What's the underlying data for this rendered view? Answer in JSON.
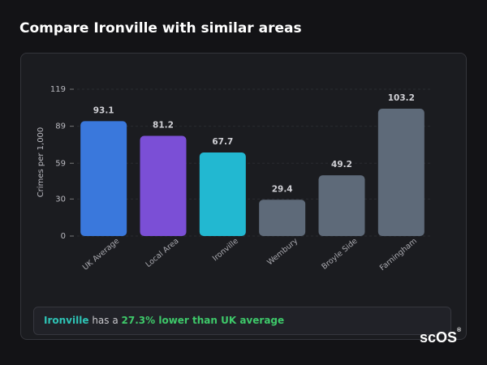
{
  "chart_data": {
    "type": "bar",
    "title": "Compare Ironville with similar areas",
    "y_label": "Crimes per 1,000",
    "categories": [
      "UK Average",
      "Local Area",
      "Ironville",
      "Wembury",
      "Broyle Side",
      "Farningham"
    ],
    "values": [
      93.1,
      81.2,
      67.7,
      29.4,
      49.2,
      103.2
    ],
    "colors": [
      "#3a78dc",
      "#7b4fd6",
      "#22b8d1",
      "#5e6a79",
      "#5e6a79",
      "#5e6a79"
    ],
    "ylim": [
      0,
      119
    ],
    "yticks": [
      0,
      30,
      59,
      89,
      119
    ],
    "grid": true
  },
  "summary": {
    "area": "Ironville",
    "text": "has a",
    "highlight": "27.3% lower than UK average"
  },
  "logo": {
    "text": "scOS",
    "mark": "®"
  }
}
